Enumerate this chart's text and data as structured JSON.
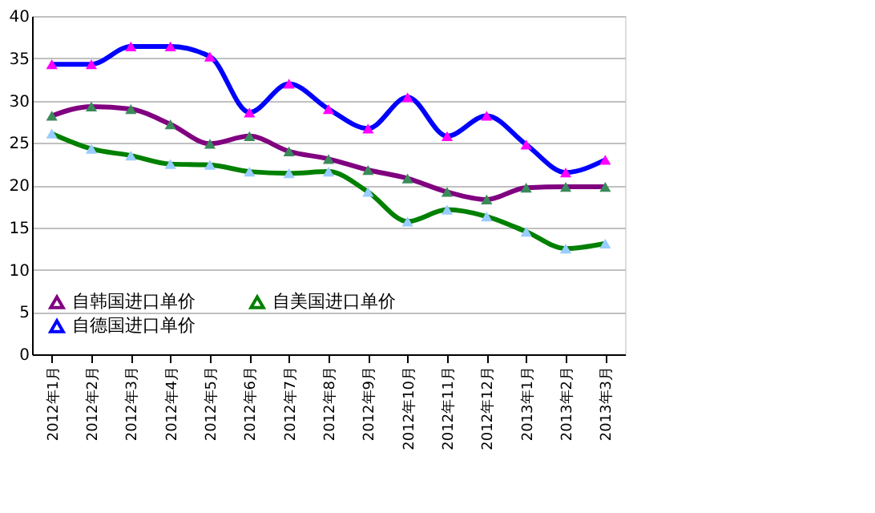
{
  "chart_data": {
    "type": "line",
    "categories": [
      "2012年1月",
      "2012年2月",
      "2012年3月",
      "2012年4月",
      "2012年5月",
      "2012年6月",
      "2012年7月",
      "2012年8月",
      "2012年9月",
      "2012年10月",
      "2012年11月",
      "2012年12月",
      "2013年1月",
      "2013年2月",
      "2013年3月"
    ],
    "series": [
      {
        "name": "自韩国进口单价",
        "color": "#800080",
        "colors": [
          "#3a8a5a",
          "#3a8a5a",
          "#3a8a5a",
          "#3a8a5a",
          "#3a8a5a",
          "#3a8a5a",
          "#3a8a5a",
          "#3a8a5a",
          "#3a8a5a",
          "#3a8a5a",
          "#3a8a5a",
          "#3a8a5a",
          "#3a8a5a",
          "#3a8a5a",
          "#3a8a5a"
        ],
        "values": [
          28.2,
          29.3,
          29.0,
          27.2,
          24.9,
          25.8,
          24.0,
          23.1,
          21.8,
          20.8,
          19.2,
          18.3,
          19.7,
          19.8,
          19.8
        ]
      },
      {
        "name": "自美国进口单价",
        "color": "#008000",
        "colors": [
          "#99ccff",
          "#99ccff",
          "#99ccff",
          "#99ccff",
          "#99ccff",
          "#99ccff",
          "#99ccff",
          "#99ccff",
          "#99ccff",
          "#99ccff",
          "#99ccff",
          "#99ccff",
          "#99ccff",
          "#99ccff",
          "#99ccff"
        ],
        "values": [
          26.1,
          24.3,
          23.5,
          22.5,
          22.4,
          21.6,
          21.4,
          21.6,
          19.2,
          15.7,
          17.1,
          16.3,
          14.5,
          12.5,
          13.1
        ]
      },
      {
        "name": "自德国进口单价",
        "color": "#0000ff",
        "colors": [
          "#ff00ff",
          "#ff00ff",
          "#ff00ff",
          "#ff00ff",
          "#ff00ff",
          "#ff00ff",
          "#ff00ff",
          "#ff00ff",
          "#ff00ff",
          "#ff00ff",
          "#ff00ff",
          "#ff00ff",
          "#ff00ff",
          "#ff00ff",
          "#ff00ff"
        ],
        "values": [
          34.3,
          34.3,
          36.4,
          36.4,
          35.2,
          28.6,
          32.0,
          29.0,
          26.7,
          30.4,
          25.8,
          28.2,
          24.8,
          21.5,
          23.0
        ]
      }
    ],
    "ylim": [
      0,
      40
    ],
    "yticks": [
      0,
      5,
      10,
      15,
      20,
      25,
      30,
      35,
      40
    ],
    "grid": "y",
    "legend": "bottom left",
    "marker": "triangle",
    "line_style": "solid"
  }
}
